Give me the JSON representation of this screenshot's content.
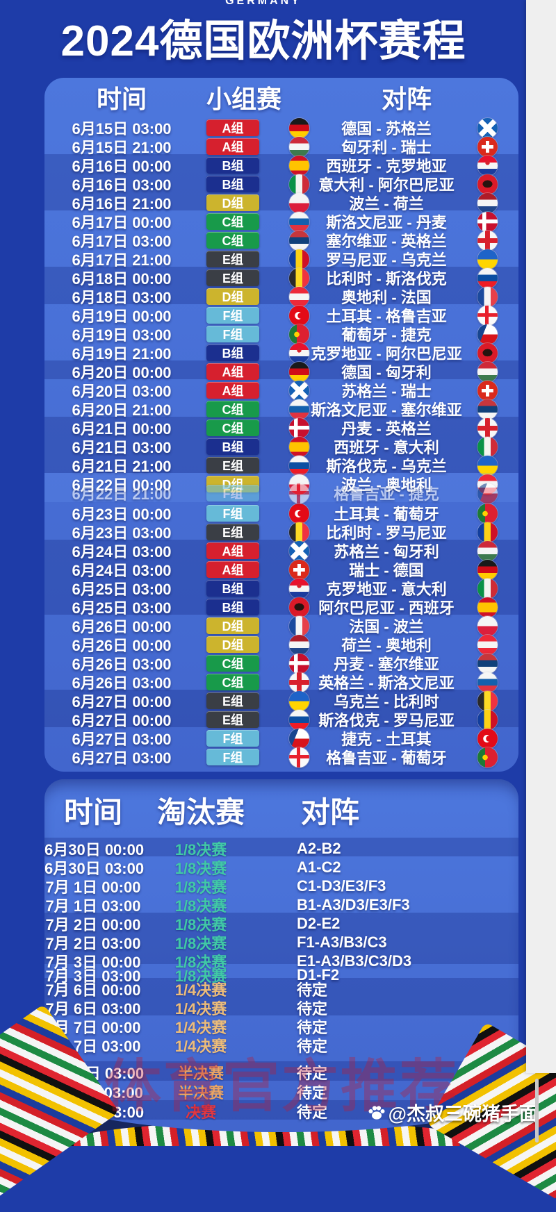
{
  "page": {
    "top_label": "GERMANY",
    "title": "2024德国欧洲杯赛程"
  },
  "colors": {
    "background": "#1e3ca8",
    "panel_top": "#4d77dd",
    "panel_bottom": "#4266cd",
    "row_dark_overlay": "rgba(14,32,122,0.28)",
    "navy_band": "#16265e",
    "gutter": "#efefef",
    "red_watermark": "rgba(190,25,50,0.34)"
  },
  "group_section": {
    "headers": {
      "time": "时间",
      "stage": "小组赛",
      "match": "对阵"
    },
    "badge_suffix": "组",
    "badge_colors": {
      "A": "#d6202e",
      "B": "#1b2f8f",
      "C": "#189a4a",
      "D": "#ccb42d",
      "E": "#3a3e45",
      "F": "#66bad8"
    },
    "rows": [
      {
        "time": "6月15日 03:00",
        "group": "A",
        "match": "德国 - 苏格兰",
        "flags": [
          "de",
          "sco"
        ],
        "shade": "light"
      },
      {
        "time": "6月15日 21:00",
        "group": "A",
        "match": "匈牙利 - 瑞士",
        "flags": [
          "hu",
          "ch"
        ],
        "shade": "light"
      },
      {
        "time": "6月16日 00:00",
        "group": "B",
        "match": "西班牙 - 克罗地亚",
        "flags": [
          "es",
          "hr"
        ],
        "shade": "dark"
      },
      {
        "time": "6月16日 03:00",
        "group": "B",
        "match": "意大利 - 阿尔巴尼亚",
        "flags": [
          "it",
          "al"
        ],
        "shade": "dark"
      },
      {
        "time": "6月16日 21:00",
        "group": "D",
        "match": "波兰 - 荷兰",
        "flags": [
          "pl",
          "nl"
        ],
        "shade": "dark"
      },
      {
        "time": "6月17日 00:00",
        "group": "C",
        "match": "斯洛文尼亚 - 丹麦",
        "flags": [
          "si",
          "dk"
        ],
        "shade": "light"
      },
      {
        "time": "6月17日 03:00",
        "group": "C",
        "match": "塞尔维亚 - 英格兰",
        "flags": [
          "rs",
          "en"
        ],
        "shade": "light"
      },
      {
        "time": "6月17日 21:00",
        "group": "E",
        "match": "罗马尼亚 - 乌克兰",
        "flags": [
          "ro",
          "ua"
        ],
        "shade": "light"
      },
      {
        "time": "6月18日 00:00",
        "group": "E",
        "match": "比利时 - 斯洛伐克",
        "flags": [
          "be",
          "sk"
        ],
        "shade": "dark"
      },
      {
        "time": "6月18日 03:00",
        "group": "D",
        "match": "奥地利 - 法国",
        "flags": [
          "at",
          "fr"
        ],
        "shade": "dark"
      },
      {
        "time": "6月19日 00:00",
        "group": "F",
        "match": "土耳其 - 格鲁吉亚",
        "flags": [
          "tr",
          "ge"
        ],
        "shade": "light"
      },
      {
        "time": "6月19日 03:00",
        "group": "F",
        "match": "葡萄牙 - 捷克",
        "flags": [
          "pt",
          "cz"
        ],
        "shade": "light"
      },
      {
        "time": "6月19日 21:00",
        "group": "B",
        "match": "克罗地亚 - 阿尔巴尼亚",
        "flags": [
          "hr",
          "al"
        ],
        "shade": "light"
      },
      {
        "time": "6月20日 00:00",
        "group": "A",
        "match": "德国 - 匈牙利",
        "flags": [
          "de",
          "hu"
        ],
        "shade": "dark"
      },
      {
        "time": "6月20日 03:00",
        "group": "A",
        "match": "苏格兰 - 瑞士",
        "flags": [
          "sco",
          "ch"
        ],
        "shade": "light"
      },
      {
        "time": "6月20日 21:00",
        "group": "C",
        "match": "斯洛文尼亚 - 塞尔维亚",
        "flags": [
          "si",
          "rs"
        ],
        "shade": "light"
      },
      {
        "time": "6月21日 00:00",
        "group": "C",
        "match": "丹麦 - 英格兰",
        "flags": [
          "dk",
          "en"
        ],
        "shade": "dark"
      },
      {
        "time": "6月21日 03:00",
        "group": "B",
        "match": "西班牙 - 意大利",
        "flags": [
          "es",
          "it"
        ],
        "shade": "dark"
      },
      {
        "time": "6月21日 21:00",
        "group": "E",
        "match": "斯洛伐克 - 乌克兰",
        "flags": [
          "sk",
          "ua"
        ],
        "shade": "dark"
      },
      {
        "time": "6月22日 00:00",
        "group": "D",
        "match": "波兰 - 奥地利",
        "flags": [
          "pl",
          "at"
        ],
        "shade": "light",
        "glitch": "primary"
      },
      {
        "time": "6月22日 21:00",
        "group": "F",
        "match": "格鲁吉亚 - 捷克",
        "flags": [
          "ge",
          "cz"
        ],
        "shade": "light",
        "glitch": "ghost"
      },
      {
        "time": "6月23日 00:00",
        "group": "F",
        "match": "土耳其 - 葡萄牙",
        "flags": [
          "tr",
          "pt"
        ],
        "shade": "light"
      },
      {
        "time": "6月23日 03:00",
        "group": "E",
        "match": "比利时 - 罗马尼亚",
        "flags": [
          "be",
          "ro"
        ],
        "shade": "light"
      },
      {
        "time": "6月24日 03:00",
        "group": "A",
        "match": "苏格兰 - 匈牙利",
        "flags": [
          "sco",
          "hu"
        ],
        "shade": "dark"
      },
      {
        "time": "6月24日 03:00",
        "group": "A",
        "match": "瑞士 - 德国",
        "flags": [
          "ch",
          "de"
        ],
        "shade": "dark"
      },
      {
        "time": "6月25日 03:00",
        "group": "B",
        "match": "克罗地亚 - 意大利",
        "flags": [
          "hr",
          "it"
        ],
        "shade": "dark"
      },
      {
        "time": "6月25日 03:00",
        "group": "B",
        "match": "阿尔巴尼亚 - 西班牙",
        "flags": [
          "al",
          "es"
        ],
        "shade": "dark"
      },
      {
        "time": "6月26日 00:00",
        "group": "D",
        "match": "法国 - 波兰",
        "flags": [
          "fr",
          "pl"
        ],
        "shade": "light"
      },
      {
        "time": "6月26日 00:00",
        "group": "D",
        "match": "荷兰 - 奥地利",
        "flags": [
          "nl",
          "at"
        ],
        "shade": "light"
      },
      {
        "time": "6月26日 03:00",
        "group": "C",
        "match": "丹麦 - 塞尔维亚",
        "flags": [
          "dk",
          "rs"
        ],
        "shade": "light"
      },
      {
        "time": "6月26日 03:00",
        "group": "C",
        "match": "英格兰 - 斯洛文尼亚",
        "flags": [
          "en",
          "si"
        ],
        "shade": "light"
      },
      {
        "time": "6月27日 00:00",
        "group": "E",
        "match": "乌克兰 - 比利时",
        "flags": [
          "ua",
          "be"
        ],
        "shade": "dark"
      },
      {
        "time": "6月27日 00:00",
        "group": "E",
        "match": "斯洛伐克 - 罗马尼亚",
        "flags": [
          "sk",
          "ro"
        ],
        "shade": "dark"
      },
      {
        "time": "6月27日 03:00",
        "group": "F",
        "match": "捷克 - 土耳其",
        "flags": [
          "cz",
          "tr"
        ],
        "shade": "light"
      },
      {
        "time": "6月27日 03:00",
        "group": "F",
        "match": "格鲁吉亚 - 葡萄牙",
        "flags": [
          "ge",
          "pt"
        ],
        "shade": "light"
      }
    ]
  },
  "knockout_section": {
    "headers": {
      "time": "时间",
      "stage": "淘汰赛",
      "match": "对阵"
    },
    "stage_colors": {
      "r16": "#41c9a6",
      "qf": "#ecbc7a",
      "sf": "#eba564",
      "final": "#e23840"
    },
    "rows": [
      {
        "time": "6月30日 00:00",
        "stage": "1/8决赛",
        "type": "r16",
        "result": "A2-B2",
        "shade": "dark"
      },
      {
        "time": "6月30日 03:00",
        "stage": "1/8决赛",
        "type": "r16",
        "result": "A1-C2",
        "shade": "light"
      },
      {
        "time": "7月 1日 00:00",
        "stage": "1/8决赛",
        "type": "r16",
        "result": "C1-D3/E3/F3",
        "shade": "light"
      },
      {
        "time": "7月 1日 03:00",
        "stage": "1/8决赛",
        "type": "r16",
        "result": "B1-A3/D3/E3/F3",
        "shade": "light"
      },
      {
        "time": "7月 2日 00:00",
        "stage": "1/8决赛",
        "type": "r16",
        "result": "D2-E2",
        "shade": "dark"
      },
      {
        "time": "7月 2日 03:00",
        "stage": "1/8决赛",
        "type": "r16",
        "result": "F1-A3/B3/C3",
        "shade": "dark"
      },
      {
        "time": "7月 3日 00:00",
        "stage": "1/8决赛",
        "type": "r16",
        "result": "E1-A3/B3/C3/D3",
        "shade": "dark",
        "squeeze": true
      },
      {
        "time": "7月 3日 03:00",
        "stage": "1/8决赛",
        "type": "r16",
        "result": "D1-F2",
        "shade": "light",
        "squeeze": true
      },
      {
        "time": "7月 6日 00:00",
        "stage": "1/4决赛",
        "type": "qf",
        "result": "待定",
        "shade": "dark"
      },
      {
        "time": "7月 6日 03:00",
        "stage": "1/4决赛",
        "type": "qf",
        "result": "待定",
        "shade": "dark"
      },
      {
        "time": "7月 7日 00:00",
        "stage": "1/4决赛",
        "type": "qf",
        "result": "待定",
        "shade": "light"
      },
      {
        "time": "7月 7日 03:00",
        "stage": "1/4决赛",
        "type": "qf",
        "result": "待定",
        "shade": "light"
      },
      {
        "time": "7月10日 03:00",
        "stage": "半决赛",
        "type": "sf",
        "result": "待定",
        "shade": "dark",
        "gap_before": true
      },
      {
        "time": "7月11日 03:00",
        "stage": "半决赛",
        "type": "sf",
        "result": "待定",
        "shade": "light"
      },
      {
        "time": "7月15日 03:00",
        "stage": "决赛",
        "type": "final",
        "result": "待定",
        "shade": "dark"
      }
    ]
  },
  "flags": {
    "de": {
      "name": "germany-flag",
      "bg": "linear-gradient(180deg,#1a1a1a 0 33%,#d00c18 33% 66%,#ffcd00 66%)"
    },
    "sco": {
      "name": "scotland-flag",
      "bg": "linear-gradient(45deg,transparent 0 41%,#fff 41% 59%,transparent 59%),linear-gradient(135deg,transparent 0 41%,#fff 41% 59%,transparent 59%),#1561b5"
    },
    "hu": {
      "name": "hungary-flag",
      "bg": "linear-gradient(180deg,#ce2939 0 33%,#f5f5f5 33% 66%,#3d7a4e 66%)"
    },
    "ch": {
      "name": "switzerland-flag",
      "bg": "linear-gradient(#fff,#fff) 50% 50%/58% 17% no-repeat,linear-gradient(#fff,#fff) 50% 50%/17% 58% no-repeat,#da291c"
    },
    "es": {
      "name": "spain-flag",
      "bg": "linear-gradient(180deg,#cf1126 0 26%,#ffc400 26% 74%,#cf1126 74%)"
    },
    "hr": {
      "name": "croatia-flag",
      "bg": "radial-gradient(circle at 50% 36%,#d8202c 0 13%,transparent 14%),linear-gradient(180deg,#e8112d 0 34%,#f5f5f5 34% 66%,#1b3c9e 66%)"
    },
    "it": {
      "name": "italy-flag",
      "bg": "linear-gradient(90deg,#0a9246 0 33%,#f4f5f0 33% 66%,#ce2b37 66%)"
    },
    "al": {
      "name": "albania-flag",
      "bg": "radial-gradient(ellipse 34% 26% at 50% 48%,#26140f 0 70%,transparent 71%),#da1a28"
    },
    "pl": {
      "name": "poland-flag",
      "bg": "linear-gradient(180deg,#f5f5f5 0 50%,#dc1e3c 50%)"
    },
    "nl": {
      "name": "netherlands-flag",
      "bg": "linear-gradient(180deg,#ae1c28 0 33%,#f5f5f5 33% 66%,#21468b 66%)"
    },
    "si": {
      "name": "slovenia-flag",
      "bg": "linear-gradient(180deg,#f5f5f5 0 33%,#1360ad 33% 66%,#e03340 66%)"
    },
    "dk": {
      "name": "denmark-flag",
      "bg": "linear-gradient(#fff,#fff) 50% 50%/100% 19% no-repeat,linear-gradient(#fff,#fff) 34% 50%/19% 100% no-repeat,#c8102e"
    },
    "rs": {
      "name": "serbia-flag",
      "bg": "linear-gradient(180deg,#c6363c 0 33%,#10407a 33% 66%,#f5f5f5 66%)"
    },
    "en": {
      "name": "england-flag",
      "bg": "linear-gradient(#d8202c,#d8202c) 50% 50%/100% 24% no-repeat,linear-gradient(#d8202c,#d8202c) 50% 50%/24% 100% no-repeat,#f7f7f7"
    },
    "ro": {
      "name": "romania-flag",
      "bg": "linear-gradient(90deg,#113e9e 0 33%,#fcd116 33% 66%,#ce1126 66%)"
    },
    "ua": {
      "name": "ukraine-flag",
      "bg": "linear-gradient(180deg,#1e63c8 0 50%,#ffd500 50%)"
    },
    "be": {
      "name": "belgium-flag",
      "bg": "linear-gradient(90deg,#2a2a2a 0 33%,#fdda24 33% 66%,#ef3340 66%)"
    },
    "at": {
      "name": "austria-flag",
      "bg": "linear-gradient(180deg,#ed2939 0 33%,#f5f5f5 33% 66%,#ed2939 66%)"
    },
    "fr": {
      "name": "france-flag",
      "bg": "linear-gradient(90deg,#1b4a9e 0 33%,#f5f5f5 33% 66%,#e6404a 66%)"
    },
    "tr": {
      "name": "turkey-flag",
      "bg": "radial-gradient(circle at 57% 50%,#e30a17 0 19%,transparent 20%),radial-gradient(circle at 47% 50%,#fff 0 25%,transparent 26%),#e30a17"
    },
    "ge": {
      "name": "georgia-flag",
      "bg": "linear-gradient(#e8202c,#e8202c) 50% 50%/100% 18% no-repeat,linear-gradient(#e8202c,#e8202c) 50% 50%/18% 100% no-repeat,#fafafa"
    },
    "pt": {
      "name": "portugal-flag",
      "bg": "radial-gradient(circle at 38% 50%,#ffd100 0 16%,transparent 17%),linear-gradient(90deg,#1d7a35 0 38%,#dd2030 38%)"
    },
    "cz": {
      "name": "czech-flag",
      "bg": "linear-gradient(112deg,#17458f 0 34%,transparent 34.5%),linear-gradient(180deg,#fff 0 50%,#d7141a 50%)"
    },
    "sk": {
      "name": "slovakia-flag",
      "bg": "linear-gradient(180deg,#f5f5f5 0 33%,#0b4ea2 33% 66%,#ee1c25 66%)"
    }
  },
  "decor": {
    "stripe_colors": [
      "#f2c100",
      "#101010",
      "#e02530",
      "#f5f5f5",
      "#1d8a43",
      "#f5f5f5",
      "#d42027",
      "#1b3c9e",
      "#f2c100",
      "#f5f5f5"
    ]
  },
  "watermarks": {
    "promo_text": "体育官方推荐",
    "credit": "@杰叔三碗猪手面"
  }
}
